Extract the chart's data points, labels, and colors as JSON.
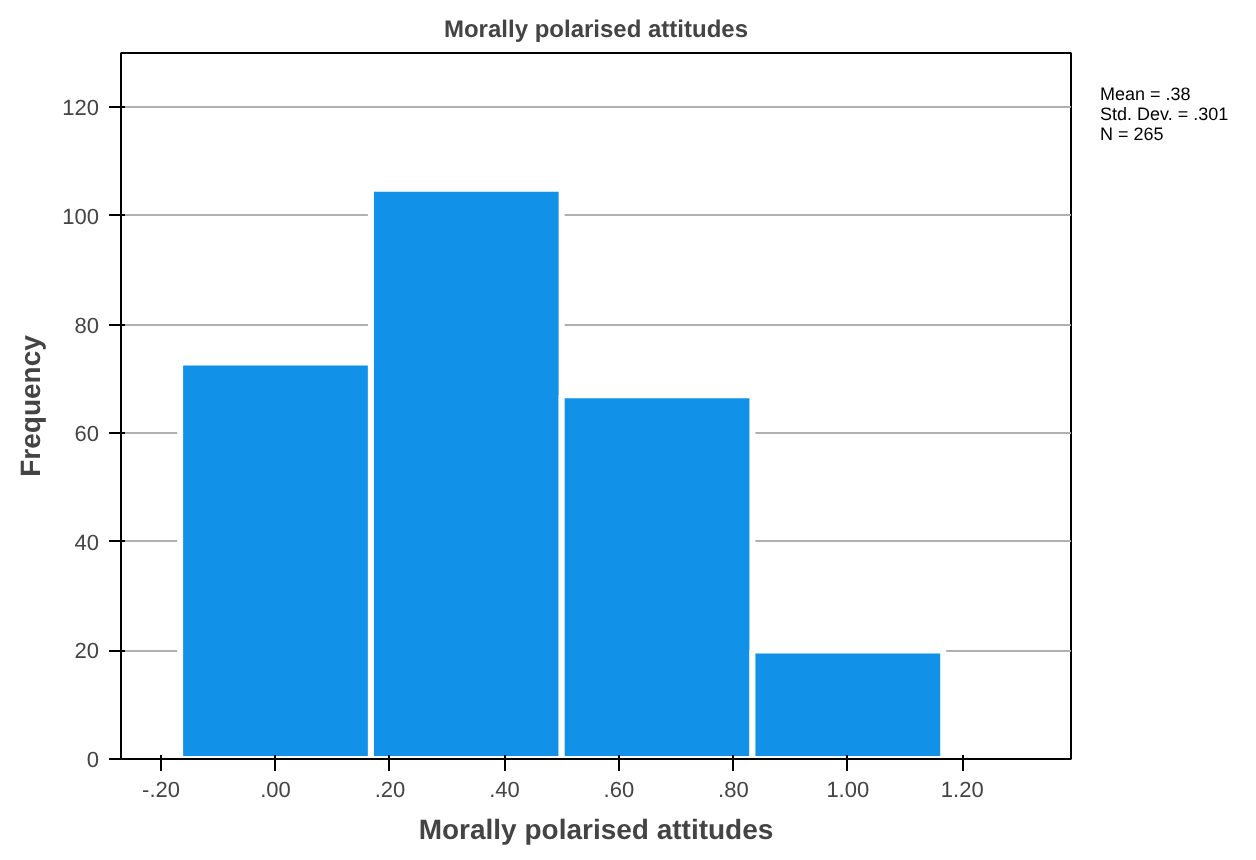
{
  "chart_data": {
    "type": "histogram",
    "title": "Morally polarised attitudes",
    "xlabel": "Morally polarised attitudes",
    "ylabel": "Frequency",
    "bins": [
      -0.1667,
      0.1667,
      0.5,
      0.8333,
      1.1667
    ],
    "values": [
      73,
      105,
      67,
      20
    ],
    "color": "#1192e8",
    "xlim": [
      -0.27,
      1.39
    ],
    "ylim": [
      0,
      130
    ],
    "xticks": [
      {
        "value": -0.2,
        "label": "-.20"
      },
      {
        "value": 0,
        "label": ".00"
      },
      {
        "value": 0.2,
        "label": ".20"
      },
      {
        "value": 0.4,
        "label": ".40"
      },
      {
        "value": 0.6,
        "label": ".60"
      },
      {
        "value": 0.8,
        "label": ".80"
      },
      {
        "value": 1.0,
        "label": "1.00"
      },
      {
        "value": 1.2,
        "label": "1.20"
      }
    ],
    "yticks": [
      0,
      20,
      40,
      60,
      80,
      100,
      120
    ],
    "grid": "y",
    "annotations": [
      "Mean = .38",
      "Std. Dev. = .301",
      "N = 265"
    ]
  }
}
